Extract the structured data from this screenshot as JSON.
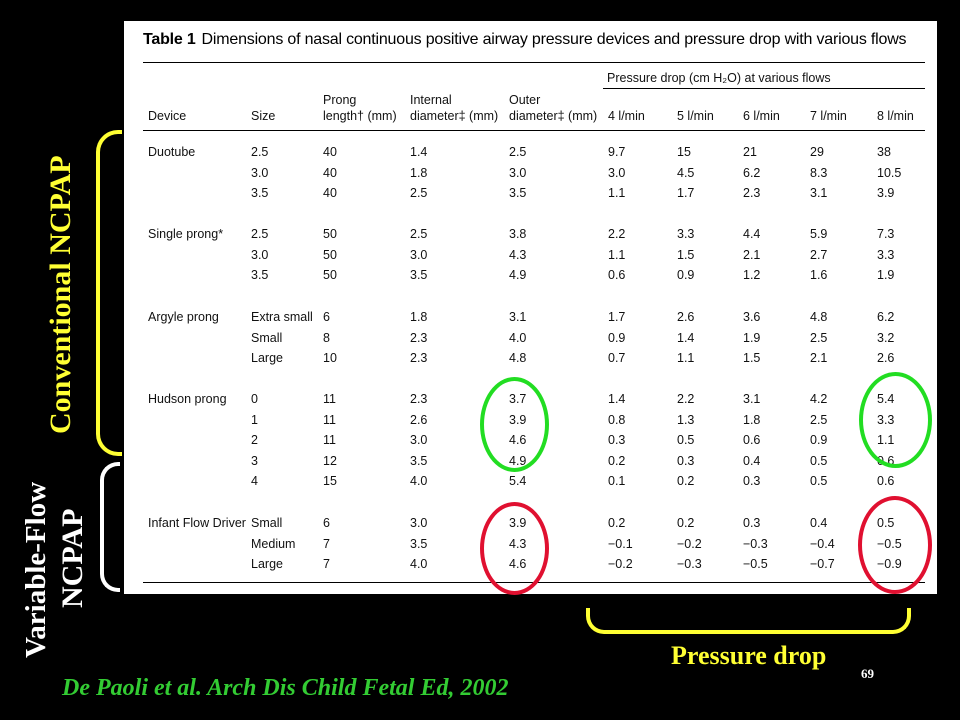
{
  "table": {
    "label": "Table 1",
    "caption": "Dimensions of nasal continuous positive airway pressure devices and pressure drop with various flows",
    "group_header": "Pressure drop (cm H₂O) at various flows",
    "columns": [
      {
        "line1": "",
        "line2": "Device"
      },
      {
        "line1": "",
        "line2": "Size"
      },
      {
        "line1": "Prong",
        "line2": "length† (mm)"
      },
      {
        "line1": "Internal",
        "line2": "diameter‡ (mm)"
      },
      {
        "line1": "Outer",
        "line2": "diameter‡ (mm)"
      },
      {
        "line1": "",
        "line2": "4 l/min"
      },
      {
        "line1": "",
        "line2": "5 l/min"
      },
      {
        "line1": "",
        "line2": "6 l/min"
      },
      {
        "line1": "",
        "line2": "7 l/min"
      },
      {
        "line1": "",
        "line2": "8 l/min"
      }
    ],
    "groups": [
      {
        "device": "Duotube",
        "rows": [
          [
            "2.5",
            "40",
            "1.4",
            "2.5",
            "9.7",
            "15",
            "21",
            "29",
            "38"
          ],
          [
            "3.0",
            "40",
            "1.8",
            "3.0",
            "3.0",
            "4.5",
            "6.2",
            "8.3",
            "10.5"
          ],
          [
            "3.5",
            "40",
            "2.5",
            "3.5",
            "1.1",
            "1.7",
            "2.3",
            "3.1",
            "3.9"
          ]
        ]
      },
      {
        "device": "Single prong*",
        "rows": [
          [
            "2.5",
            "50",
            "2.5",
            "3.8",
            "2.2",
            "3.3",
            "4.4",
            "5.9",
            "7.3"
          ],
          [
            "3.0",
            "50",
            "3.0",
            "4.3",
            "1.1",
            "1.5",
            "2.1",
            "2.7",
            "3.3"
          ],
          [
            "3.5",
            "50",
            "3.5",
            "4.9",
            "0.6",
            "0.9",
            "1.2",
            "1.6",
            "1.9"
          ]
        ]
      },
      {
        "device": "Argyle prong",
        "rows": [
          [
            "Extra small",
            "6",
            "1.8",
            "3.1",
            "1.7",
            "2.6",
            "3.6",
            "4.8",
            "6.2"
          ],
          [
            "Small",
            "8",
            "2.3",
            "4.0",
            "0.9",
            "1.4",
            "1.9",
            "2.5",
            "3.2"
          ],
          [
            "Large",
            "10",
            "2.3",
            "4.8",
            "0.7",
            "1.1",
            "1.5",
            "2.1",
            "2.6"
          ]
        ]
      },
      {
        "device": "Hudson prong",
        "rows": [
          [
            "0",
            "11",
            "2.3",
            "3.7",
            "1.4",
            "2.2",
            "3.1",
            "4.2",
            "5.4"
          ],
          [
            "1",
            "11",
            "2.6",
            "3.9",
            "0.8",
            "1.3",
            "1.8",
            "2.5",
            "3.3"
          ],
          [
            "2",
            "11",
            "3.0",
            "4.6",
            "0.3",
            "0.5",
            "0.6",
            "0.9",
            "1.1"
          ],
          [
            "3",
            "12",
            "3.5",
            "4.9",
            "0.2",
            "0.3",
            "0.4",
            "0.5",
            "0.6"
          ],
          [
            "4",
            "15",
            "4.0",
            "5.4",
            "0.1",
            "0.2",
            "0.3",
            "0.5",
            "0.6"
          ]
        ]
      },
      {
        "device": "Infant Flow Driver",
        "rows": [
          [
            "Small",
            "6",
            "3.0",
            "3.9",
            "0.2",
            "0.2",
            "0.3",
            "0.4",
            "0.5"
          ],
          [
            "Medium",
            "7",
            "3.5",
            "4.3",
            "−0.1",
            "−0.2",
            "−0.3",
            "−0.4",
            "−0.5"
          ],
          [
            "Large",
            "7",
            "4.0",
            "4.6",
            "−0.2",
            "−0.3",
            "−0.5",
            "−0.7",
            "−0.9"
          ]
        ]
      }
    ]
  },
  "labels": {
    "conventional": "Conventional NCPAP",
    "variable_line1": "Variable-Flow",
    "variable_line2": "NCPAP",
    "pressure_drop": "Pressure drop",
    "citation": "De Paoli et al. Arch Dis Child Fetal Ed, 2002",
    "slide_number": "69"
  },
  "colors": {
    "background": "#000000",
    "label_yellow": "#ffff33",
    "citation_green": "#33cc33",
    "ring_green": "#22dd22",
    "ring_red": "#e01030",
    "slide_number": "#ffffff"
  }
}
